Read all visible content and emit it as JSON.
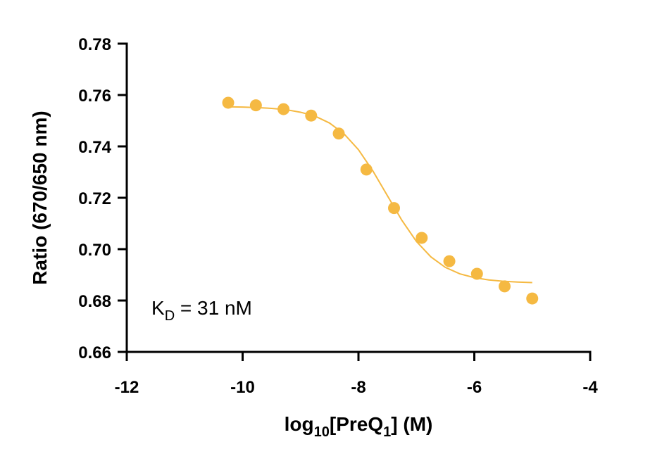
{
  "chart_data": {
    "type": "scatter",
    "ylabel": "Ratio (670/650 nm)",
    "xlabel": [
      "log",
      "10",
      "[PreQ",
      "1",
      "] (M)"
    ],
    "annotation": [
      "K",
      "D",
      " = 31 nM"
    ],
    "x": [
      -10.249,
      -9.771,
      -9.294,
      -8.817,
      -8.34,
      -7.863,
      -7.386,
      -6.908,
      -6.431,
      -5.954,
      -5.477,
      -5.0
    ],
    "values": [
      0.757,
      0.756,
      0.7545,
      0.752,
      0.745,
      0.731,
      0.716,
      0.7044,
      0.6953,
      0.6904,
      0.6855,
      0.6808
    ],
    "color": "#f5b942",
    "fit": {
      "x": [
        -10.25,
        -10,
        -9.75,
        -9.5,
        -9.25,
        -9,
        -8.75,
        -8.5,
        -8.25,
        -8,
        -7.75,
        -7.5,
        -7.25,
        -7,
        -6.75,
        -6.5,
        -6.25,
        -6,
        -5.75,
        -5.5,
        -5.25,
        -5
      ],
      "values": [
        0.7554,
        0.7553,
        0.7551,
        0.7548,
        0.7543,
        0.7533,
        0.7518,
        0.7491,
        0.7449,
        0.7387,
        0.7304,
        0.7208,
        0.7112,
        0.703,
        0.697,
        0.6929,
        0.6904,
        0.6889,
        0.688,
        0.6875,
        0.6872,
        0.687
      ]
    },
    "xlim": [
      -12,
      -4
    ],
    "ylim": [
      0.66,
      0.78
    ],
    "xticks": [
      -12,
      -10,
      -8,
      -6,
      -4
    ],
    "yticks": [
      0.66,
      0.68,
      {
        "value": 0.7,
        "label": "0.70"
      },
      0.72,
      0.74,
      0.76,
      0.78
    ]
  }
}
